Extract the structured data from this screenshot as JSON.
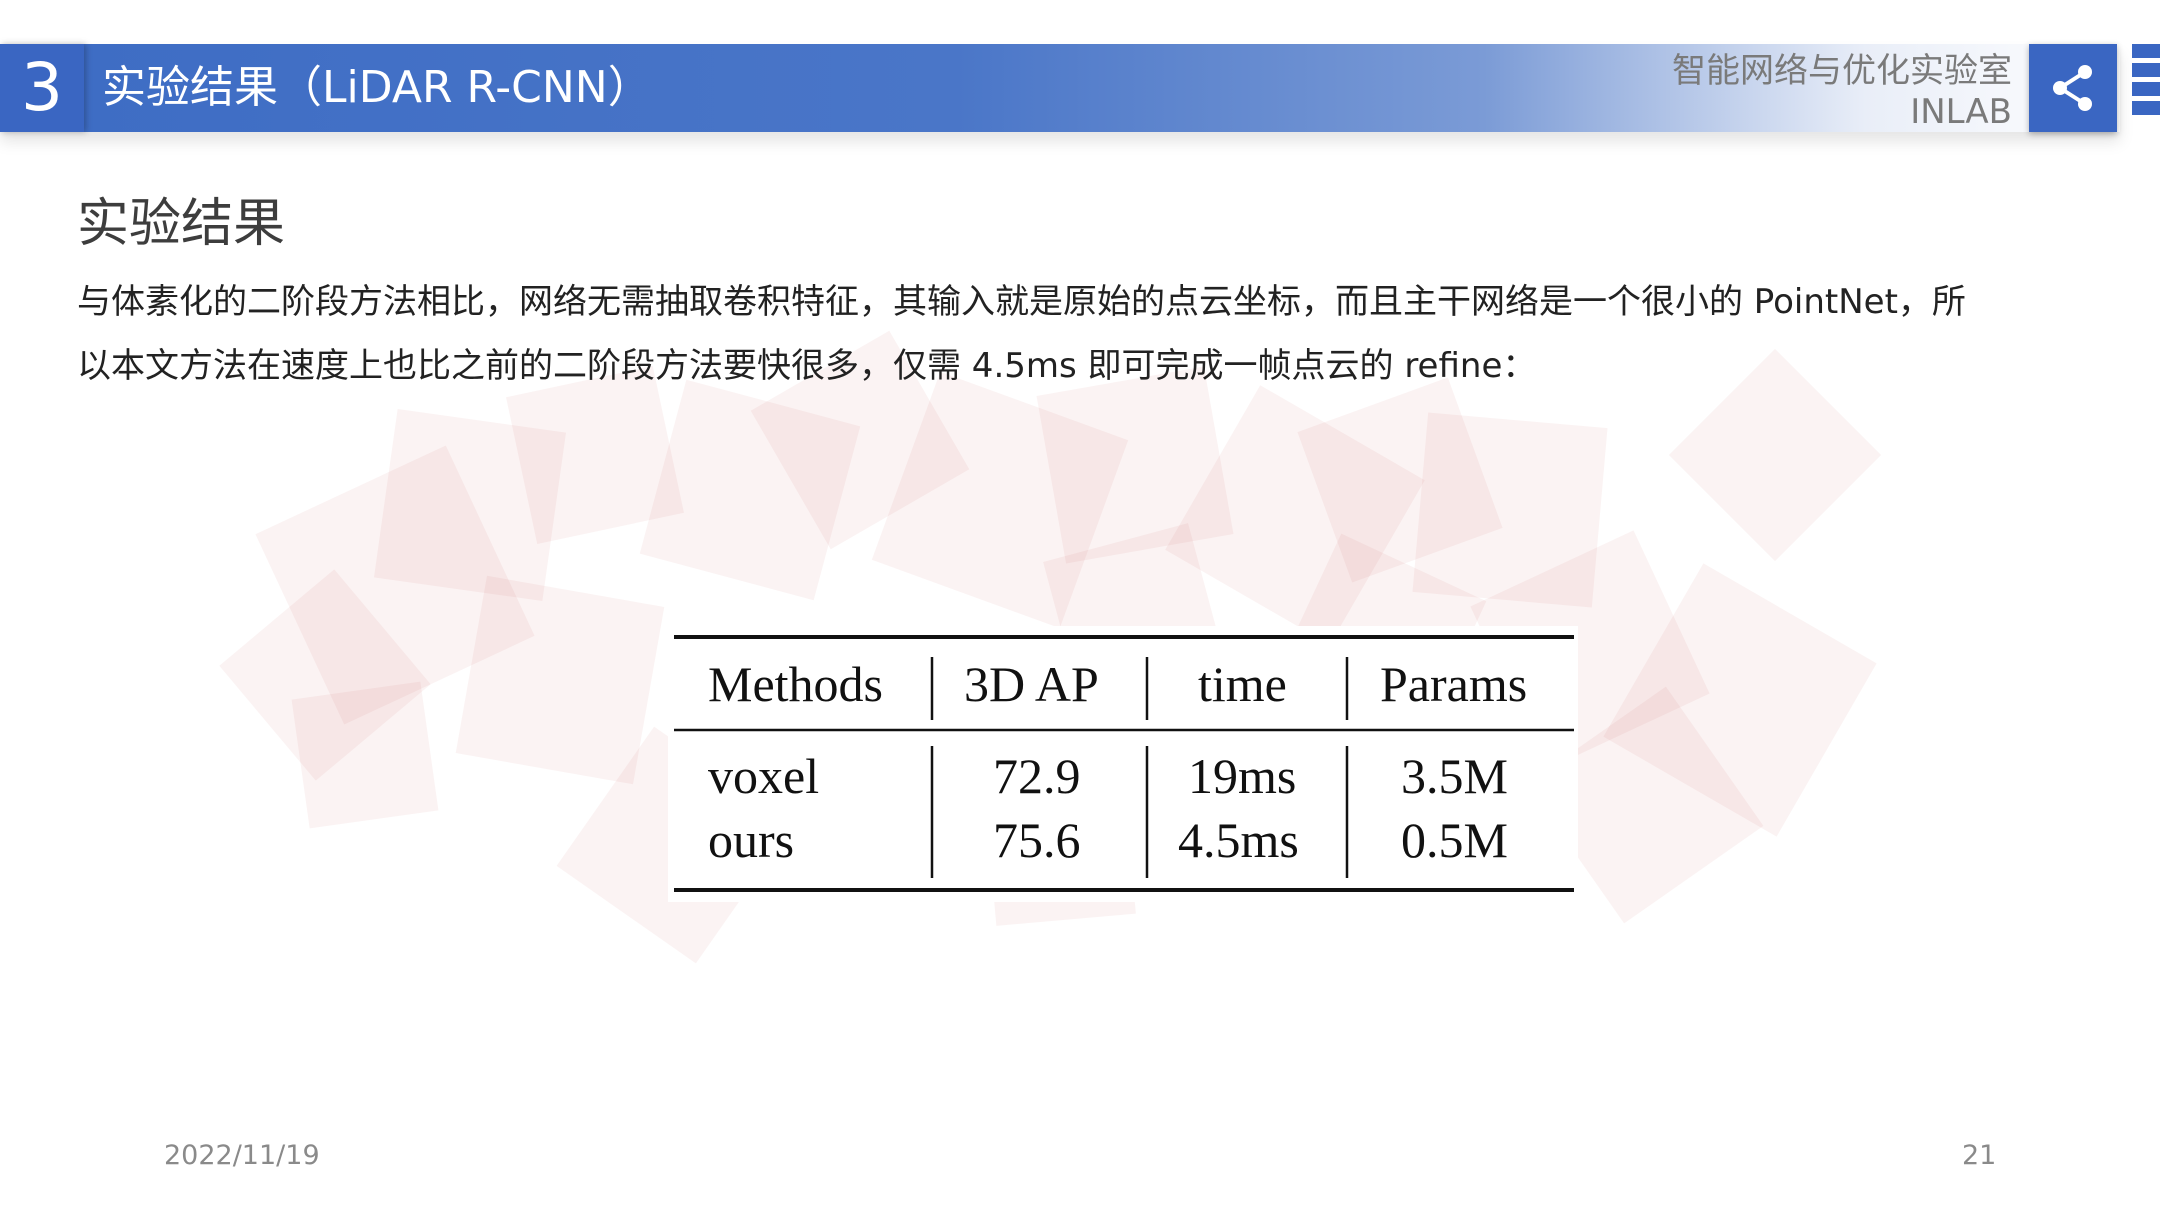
{
  "header": {
    "section_number": "3",
    "title": "实验结果（LiDAR R-CNN）",
    "lab_name": "智能网络与优化实验室",
    "lab_abbr": "INLAB",
    "share_icon": "share-icon",
    "accent_color": "#3a66c2"
  },
  "content": {
    "heading": "实验结果",
    "paragraph_lines": [
      "与体素化的二阶段方法相比，网络无需抽取卷积特征，其输入就是原始的点云坐标，而且主干网络是一个很小的 PointNet，所",
      "以本文方法在速度上也比之前的二阶段方法要快很多，仅需 4.5ms 即可完成一帧点云的 refine："
    ]
  },
  "table": {
    "headers": [
      "Methods",
      "3D AP",
      "time",
      "Params"
    ],
    "rows": [
      [
        "voxel",
        "72.9",
        "19ms",
        "3.5M"
      ],
      [
        "ours",
        "75.6",
        "4.5ms",
        "0.5M"
      ]
    ]
  },
  "footer": {
    "date": "2022/11/19",
    "page_number": "21"
  }
}
